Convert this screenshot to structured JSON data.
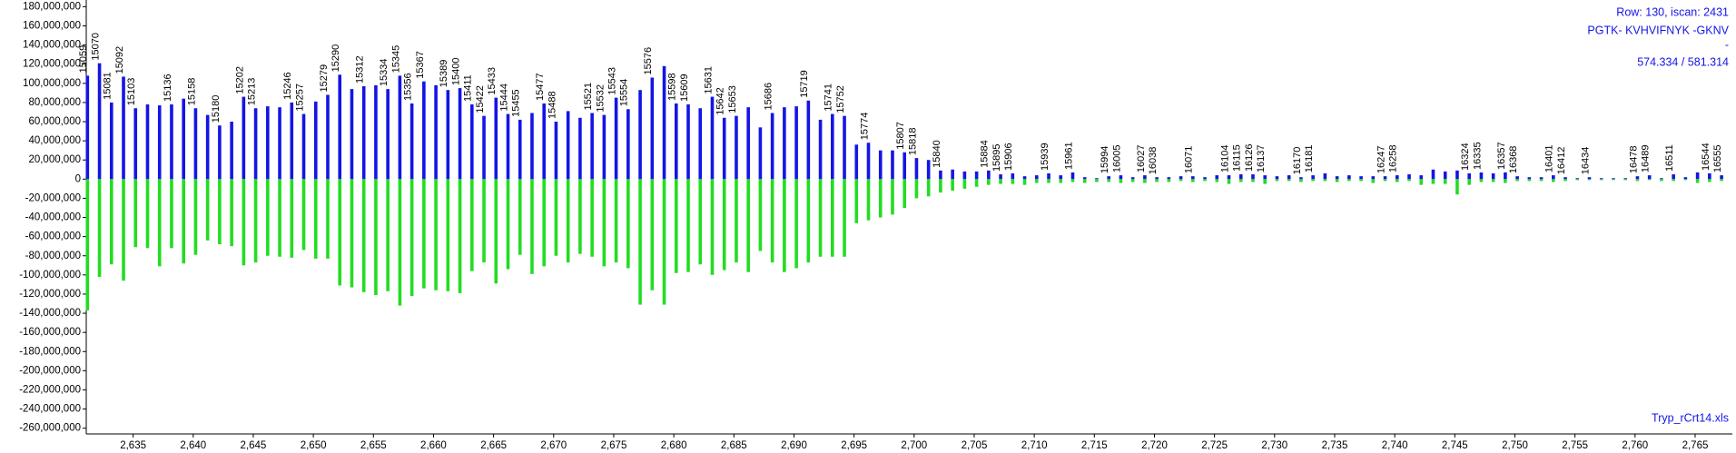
{
  "chart_data": {
    "type": "mirror-stick",
    "info_lines": [
      "Row: 130, iscan: 2431",
      "PGTK- KVHVIFNYK -GKNV",
      "-",
      "574.334 / 581.314"
    ],
    "file_name": "Tryp_rCrt14.xls",
    "x": [
      2631.2,
      2632.2,
      2633.2,
      2634.2,
      2635.2,
      2636.2,
      2637.2,
      2638.2,
      2639.2,
      2640.2,
      2641.2,
      2642.2,
      2643.2,
      2644.2,
      2645.2,
      2646.2,
      2647.2,
      2648.2,
      2649.2,
      2650.2,
      2651.2,
      2652.2,
      2653.2,
      2654.2,
      2655.2,
      2656.2,
      2657.2,
      2658.2,
      2659.2,
      2660.2,
      2661.2,
      2662.2,
      2663.2,
      2664.2,
      2665.2,
      2666.2,
      2667.2,
      2668.2,
      2669.2,
      2670.2,
      2671.2,
      2672.2,
      2673.2,
      2674.2,
      2675.2,
      2676.2,
      2677.2,
      2678.2,
      2679.2,
      2680.2,
      2681.2,
      2682.2,
      2683.2,
      2684.2,
      2685.2,
      2686.2,
      2687.2,
      2688.2,
      2689.2,
      2690.2,
      2691.2,
      2692.2,
      2693.2,
      2694.2,
      2695.2,
      2696.2,
      2697.2,
      2698.2,
      2699.2,
      2700.2,
      2701.2,
      2702.2,
      2703.2,
      2704.2,
      2705.2,
      2706.2,
      2707.2,
      2708.2,
      2709.2,
      2710.2,
      2711.2,
      2712.2,
      2713.2,
      2714.2,
      2715.2,
      2716.2,
      2717.2,
      2718.2,
      2719.2,
      2720.2,
      2721.2,
      2722.2,
      2723.2,
      2724.2,
      2725.2,
      2726.2,
      2727.2,
      2728.2,
      2729.2,
      2730.2,
      2731.2,
      2732.2,
      2733.2,
      2734.2,
      2735.2,
      2736.2,
      2737.2,
      2738.2,
      2739.2,
      2740.2,
      2741.2,
      2742.2,
      2743.2,
      2744.2,
      2745.2,
      2746.2,
      2747.2,
      2748.2,
      2749.2,
      2750.2,
      2751.2,
      2752.2,
      2753.2,
      2754.2,
      2755.2,
      2756.2,
      2757.2,
      2758.2,
      2759.2,
      2760.2,
      2761.2,
      2762.2,
      2763.2,
      2764.2,
      2765.2,
      2766.2,
      2767.2
    ],
    "peak_labels": [
      "15059",
      "15070",
      "15081",
      "15092",
      "15103",
      null,
      null,
      "15136",
      null,
      "15158",
      null,
      "15180",
      null,
      "15202",
      "15213",
      null,
      null,
      "15246",
      "15257",
      null,
      "15279",
      "15290",
      null,
      "15312",
      null,
      "15334",
      "15345",
      "15356",
      "15367",
      null,
      "15389",
      "15400",
      "15411",
      "15422",
      "15433",
      "15444",
      "15455",
      null,
      "15477",
      "15488",
      null,
      null,
      "15521",
      "15532",
      "15543",
      "15554",
      null,
      "15576",
      null,
      "15598",
      "15609",
      null,
      "15631",
      "15642",
      "15653",
      null,
      null,
      "15686",
      null,
      null,
      "15719",
      null,
      "15741",
      "15752",
      null,
      "15774",
      null,
      null,
      "15807",
      "15818",
      null,
      "15840",
      null,
      null,
      null,
      "15884",
      "15895",
      "15906",
      null,
      null,
      "15939",
      null,
      "15961",
      null,
      null,
      "15994",
      "16005",
      null,
      "16027",
      "16038",
      null,
      null,
      "16071",
      null,
      null,
      "16104",
      "16115",
      "16126",
      "16137",
      null,
      null,
      "16170",
      "16181",
      null,
      null,
      null,
      null,
      null,
      "16247",
      "16258",
      null,
      null,
      null,
      null,
      null,
      "16324",
      "16335",
      null,
      "16357",
      "16368",
      null,
      null,
      "16401",
      "16412",
      null,
      "16434",
      null,
      null,
      null,
      "16478",
      "16489",
      null,
      "16511",
      null,
      null,
      "16544",
      "16555"
    ],
    "peak_label_color": "#8b1a1a",
    "series": [
      {
        "color": "#1414e6",
        "values": [
          108000000,
          121000000,
          80000000,
          107000000,
          74000000,
          78000000,
          77000000,
          78000000,
          84000000,
          74000000,
          67000000,
          56000000,
          60000000,
          86000000,
          74000000,
          76000000,
          75000000,
          80000000,
          68000000,
          81000000,
          88000000,
          109000000,
          94000000,
          97000000,
          98000000,
          94000000,
          108000000,
          79000000,
          102000000,
          98000000,
          93000000,
          95000000,
          78000000,
          66000000,
          85000000,
          68000000,
          62000000,
          69000000,
          79000000,
          60000000,
          71000000,
          64000000,
          69000000,
          67000000,
          85000000,
          73000000,
          93000000,
          106000000,
          118000000,
          79000000,
          78000000,
          74000000,
          86000000,
          64000000,
          66000000,
          75000000,
          54000000,
          69000000,
          75000000,
          76000000,
          82000000,
          62000000,
          68000000,
          66000000,
          36000000,
          38000000,
          30000000,
          30000000,
          28000000,
          22000000,
          20000000,
          9000000,
          10000000,
          8000000,
          8000000,
          9000000,
          5000000,
          6000000,
          3000000,
          4000000,
          6000000,
          4000000,
          7000000,
          2000000,
          1000000,
          3000000,
          4000000,
          2000000,
          4000000,
          2000000,
          2000000,
          3000000,
          3000000,
          2000000,
          4000000,
          4000000,
          5000000,
          5000000,
          4000000,
          3000000,
          4000000,
          2000000,
          4000000,
          6000000,
          3000000,
          4000000,
          3000000,
          3000000,
          3000000,
          4000000,
          5000000,
          4000000,
          10000000,
          8000000,
          9000000,
          6000000,
          7000000,
          6000000,
          7000000,
          3000000,
          2000000,
          2000000,
          4000000,
          2000000,
          1000000,
          2000000,
          1000000,
          1000000,
          1000000,
          3000000,
          4000000,
          1000000,
          5000000,
          2000000,
          7000000,
          6000000,
          4000000
        ]
      },
      {
        "color": "#22dd22",
        "values": [
          -137000000,
          -102000000,
          -89000000,
          -106000000,
          -71000000,
          -72000000,
          -91000000,
          -72000000,
          -88000000,
          -79000000,
          -64000000,
          -68000000,
          -70000000,
          -90000000,
          -87000000,
          -80000000,
          -81000000,
          -82000000,
          -74000000,
          -83000000,
          -83000000,
          -111000000,
          -113000000,
          -118000000,
          -121000000,
          -117000000,
          -132000000,
          -122000000,
          -114000000,
          -116000000,
          -117000000,
          -119000000,
          -96000000,
          -87000000,
          -109000000,
          -94000000,
          -79000000,
          -99000000,
          -91000000,
          -80000000,
          -87000000,
          -78000000,
          -81000000,
          -91000000,
          -87000000,
          -93000000,
          -131000000,
          -116000000,
          -131000000,
          -98000000,
          -97000000,
          -89000000,
          -100000000,
          -95000000,
          -87000000,
          -97000000,
          -75000000,
          -87000000,
          -97000000,
          -93000000,
          -87000000,
          -81000000,
          -81000000,
          -81000000,
          -46000000,
          -43000000,
          -40000000,
          -37000000,
          -30000000,
          -20000000,
          -18000000,
          -14000000,
          -12000000,
          -10000000,
          -8000000,
          -6000000,
          -5000000,
          -5000000,
          -6000000,
          -4000000,
          -4000000,
          -4000000,
          -3000000,
          -4000000,
          -3000000,
          -3000000,
          -4000000,
          -3000000,
          -4000000,
          -3000000,
          -3000000,
          -2000000,
          -3000000,
          -2000000,
          -3000000,
          -5000000,
          -3000000,
          -3000000,
          -5000000,
          -2000000,
          -2000000,
          -3000000,
          -2000000,
          -2000000,
          -3000000,
          -2000000,
          -2000000,
          -4000000,
          -2000000,
          -3000000,
          -2000000,
          -6000000,
          -5000000,
          -5000000,
          -16000000,
          -6000000,
          -3000000,
          -3000000,
          -4000000,
          -2000000,
          -2000000,
          -2000000,
          -3000000,
          -2000000,
          -1000000,
          -1000000,
          -1000000,
          -1000000,
          -1000000,
          -2000000,
          -1000000,
          -2000000,
          -2000000,
          -1000000,
          -4000000,
          -3000000,
          -2000000
        ]
      }
    ],
    "xlim": [
      2631.1,
      2768.1
    ],
    "ylim": [
      -266000000,
      187000000
    ],
    "xticks": [
      {
        "value": 2635,
        "label": "2,635"
      },
      {
        "value": 2640,
        "label": "2,640"
      },
      {
        "value": 2645,
        "label": "2,645"
      },
      {
        "value": 2650,
        "label": "2,650"
      },
      {
        "value": 2655,
        "label": "2,655"
      },
      {
        "value": 2660,
        "label": "2,660"
      },
      {
        "value": 2665,
        "label": "2,665"
      },
      {
        "value": 2670,
        "label": "2,670"
      },
      {
        "value": 2675,
        "label": "2,675"
      },
      {
        "value": 2680,
        "label": "2,680"
      },
      {
        "value": 2685,
        "label": "2,685"
      },
      {
        "value": 2690,
        "label": "2,690"
      },
      {
        "value": 2695,
        "label": "2,695"
      },
      {
        "value": 2700,
        "label": "2,700"
      },
      {
        "value": 2705,
        "label": "2,705"
      },
      {
        "value": 2710,
        "label": "2,710"
      },
      {
        "value": 2715,
        "label": "2,715"
      },
      {
        "value": 2720,
        "label": "2,720"
      },
      {
        "value": 2725,
        "label": "2,725"
      },
      {
        "value": 2730,
        "label": "2,730"
      },
      {
        "value": 2735,
        "label": "2,735"
      },
      {
        "value": 2740,
        "label": "2,740"
      },
      {
        "value": 2745,
        "label": "2,745"
      },
      {
        "value": 2750,
        "label": "2,750"
      },
      {
        "value": 2755,
        "label": "2,755"
      },
      {
        "value": 2760,
        "label": "2,760"
      },
      {
        "value": 2765,
        "label": "2,765"
      }
    ],
    "yticks": [
      {
        "value": 180000000,
        "label": "180,000,000"
      },
      {
        "value": 160000000,
        "label": "160,000,000"
      },
      {
        "value": 140000000,
        "label": "140,000,000"
      },
      {
        "value": 120000000,
        "label": "120,000,000"
      },
      {
        "value": 100000000,
        "label": "100,000,000"
      },
      {
        "value": 80000000,
        "label": "80,000,000"
      },
      {
        "value": 60000000,
        "label": "60,000,000"
      },
      {
        "value": 40000000,
        "label": "40,000,000"
      },
      {
        "value": 20000000,
        "label": "20,000,000"
      },
      0,
      {
        "value": -20000000,
        "label": "-20,000,000"
      },
      {
        "value": -40000000,
        "label": "-40,000,000"
      },
      {
        "value": -60000000,
        "label": "-60,000,000"
      },
      {
        "value": -80000000,
        "label": "-80,000,000"
      },
      {
        "value": -100000000,
        "label": "-100,000,000"
      },
      {
        "value": -120000000,
        "label": "-120,000,000"
      },
      {
        "value": -140000000,
        "label": "-140,000,000"
      },
      {
        "value": -160000000,
        "label": "-160,000,000"
      },
      {
        "value": -180000000,
        "label": "-180,000,000"
      },
      {
        "value": -200000000,
        "label": "-200,000,000"
      },
      {
        "value": -220000000,
        "label": "-220,000,000"
      },
      {
        "value": -240000000,
        "label": "-240,000,000"
      },
      {
        "value": -260000000,
        "label": "-260,000,000"
      }
    ]
  }
}
